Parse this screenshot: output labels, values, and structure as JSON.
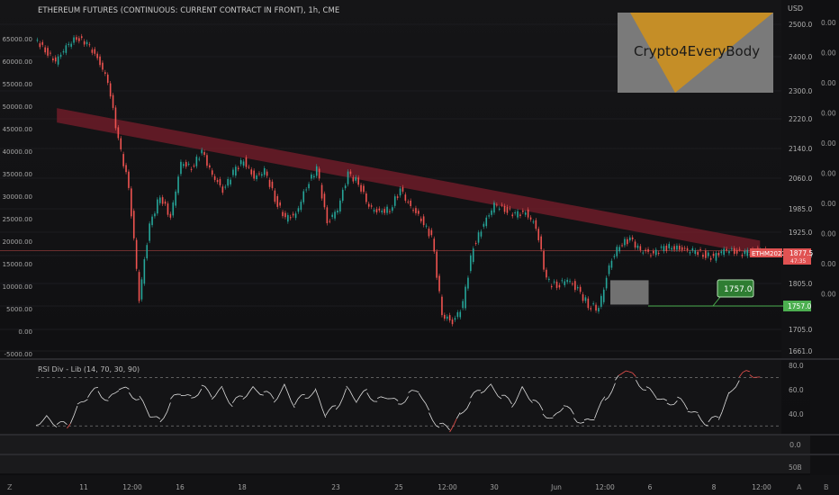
{
  "header": {
    "title": "ETHEREUM FUTURES (CONTINUOUS: CURRENT CONTRACT IN FRONT), 1h, CME"
  },
  "logo": {
    "text": "Crypto4EveryBody"
  },
  "colors": {
    "background": "#0e0e10",
    "candle_up": "#26a69a",
    "candle_down": "#ef5350",
    "trendline": "#7a1e2b",
    "demand_zone": "#3aa655",
    "price_label": "#e05252",
    "target_label": "#4caf50",
    "rsi_line": "#e0e0e0",
    "rsi_overbought": "#ef5350",
    "rsi_oversold": "#ef5350"
  },
  "chart_data": [
    {
      "type": "line",
      "name": "price",
      "xlabel": "",
      "ylabel": "",
      "currency_label": "USD",
      "price_ticks": [
        "2500.0",
        "2400.0",
        "2300.0",
        "2220.0",
        "2140.0",
        "2060.0",
        "1985.0",
        "1925.0",
        "1865.0",
        "1805.0",
        "1757.0",
        "1705.0",
        "1661.0"
      ],
      "price_tick_values": [
        2500,
        2400,
        2300,
        2220,
        2140,
        2060,
        1985,
        1925,
        1865,
        1805,
        1757,
        1705,
        1661
      ],
      "left_ticks": [
        "65000.00",
        "60000.00",
        "55000.00",
        "50000.00",
        "45000.00",
        "40000.00",
        "35000.00",
        "30000.00",
        "25000.00",
        "20000.00",
        "15000.00",
        "10000.00",
        "5000.00",
        "0.00",
        "-5000.00"
      ],
      "right_secondary_ticks": [
        "0.00",
        "0.00",
        "0.00",
        "0.00",
        "0.00",
        "0.00",
        "0.00",
        "0.00",
        "0.00",
        "0.00"
      ],
      "x_ticks": [
        "11",
        "12:00",
        "16",
        "18",
        "23",
        "25",
        "12:00",
        "30",
        "Jun",
        "12:00",
        "6",
        "8",
        "12:00"
      ],
      "close_series": {
        "x": [
          0,
          3,
          6,
          9,
          12,
          15,
          18,
          21,
          24,
          27,
          30,
          33,
          36,
          39,
          42,
          45,
          48,
          51,
          54,
          57,
          60,
          63,
          66,
          69,
          72,
          75,
          78,
          81,
          84,
          87,
          90,
          93,
          96,
          99,
          102,
          105,
          108,
          111,
          114,
          117,
          120,
          123,
          126,
          129,
          132,
          135,
          138,
          141,
          144,
          147,
          150,
          153,
          156,
          159,
          162,
          165,
          168,
          171,
          174,
          177,
          180,
          183,
          186,
          189,
          192,
          195,
          198,
          201,
          204,
          207,
          210
        ],
        "y": [
          2455,
          2420,
          2385,
          2430,
          2460,
          2440,
          2395,
          2330,
          2160,
          2040,
          1770,
          1940,
          2020,
          1960,
          2100,
          2090,
          2130,
          2070,
          2030,
          2075,
          2110,
          2060,
          2080,
          2010,
          1960,
          1970,
          2040,
          2085,
          1950,
          1985,
          2070,
          2050,
          1990,
          1975,
          1985,
          2030,
          1990,
          1960,
          1910,
          1740,
          1720,
          1760,
          1890,
          1945,
          1995,
          1985,
          1970,
          1975,
          1940,
          1810,
          1800,
          1815,
          1790,
          1760,
          1750,
          1840,
          1895,
          1905,
          1880,
          1870,
          1880,
          1890,
          1880,
          1877,
          1870,
          1860,
          1880,
          1877,
          1870,
          1877,
          1877
        ]
      },
      "current_price_label": "ETHM2022",
      "current_price_value": "1877.5",
      "current_price_sub": "47:35",
      "target_value": "1757.0",
      "target_right_value": "1757.0",
      "trendline": {
        "x1": 6,
        "y1": 2230,
        "x2": 208,
        "y2": 1885
      },
      "demand_zones": [
        {
          "x1": 38,
          "x2": 42,
          "y1": 2080,
          "y2": 2120
        },
        {
          "x1": 55,
          "x2": 57,
          "y1": 2060,
          "y2": 2085
        },
        {
          "x1": 83,
          "x2": 91,
          "y1": 1985,
          "y2": 2035
        },
        {
          "x1": 124,
          "x2": 165,
          "y1": 1755,
          "y2": 1825
        }
      ],
      "gray_zone": {
        "x1": 165,
        "x2": 176,
        "y1": 1760,
        "y2": 1812
      }
    },
    {
      "type": "line",
      "name": "rsi",
      "indicator_label": "RSI Div - Lib (14, 70, 30, 90)",
      "ticks": [
        "80.0",
        "60.0",
        "40.0"
      ],
      "tick_values": [
        80,
        60,
        40
      ],
      "overbought": 70,
      "oversold": 30,
      "ylim": [
        25,
        83
      ],
      "values": [
        33,
        36,
        32,
        30,
        45,
        55,
        60,
        50,
        62,
        58,
        52,
        40,
        33,
        50,
        58,
        52,
        62,
        55,
        60,
        48,
        55,
        60,
        58,
        52,
        62,
        48,
        55,
        58,
        40,
        45,
        60,
        52,
        58,
        50,
        55,
        48,
        55,
        60,
        40,
        30,
        28,
        38,
        52,
        60,
        62,
        55,
        48,
        60,
        52,
        42,
        35,
        48,
        38,
        32,
        38,
        52,
        65,
        78,
        68,
        60,
        55,
        48,
        52,
        45,
        38,
        32,
        38,
        55,
        70,
        75,
        68
      ]
    }
  ],
  "lower_panels": {
    "tick_0": "0.0",
    "tick_50": "50B"
  },
  "bottom_bar": {
    "left_icon": "Z",
    "right_icon_a": "A",
    "right_icon_b": "B"
  }
}
